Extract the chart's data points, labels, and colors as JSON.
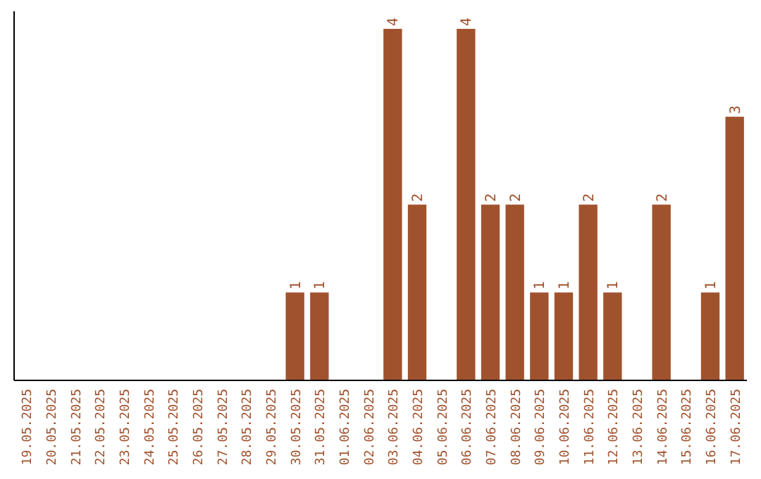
{
  "chart_data": {
    "type": "bar",
    "categories": [
      "19.05.2025",
      "20.05.2025",
      "21.05.2025",
      "22.05.2025",
      "23.05.2025",
      "24.05.2025",
      "25.05.2025",
      "26.05.2025",
      "27.05.2025",
      "28.05.2025",
      "29.05.2025",
      "30.05.2025",
      "31.05.2025",
      "01.06.2025",
      "02.06.2025",
      "03.06.2025",
      "04.06.2025",
      "05.06.2025",
      "06.06.2025",
      "07.06.2025",
      "08.06.2025",
      "09.06.2025",
      "10.06.2025",
      "11.06.2025",
      "12.06.2025",
      "13.06.2025",
      "14.06.2025",
      "15.06.2025",
      "16.06.2025",
      "17.06.2025"
    ],
    "values": [
      0,
      0,
      0,
      0,
      0,
      0,
      0,
      0,
      0,
      0,
      0,
      1,
      1,
      0,
      0,
      4,
      2,
      0,
      4,
      2,
      2,
      1,
      1,
      2,
      1,
      0,
      2,
      0,
      1,
      3
    ],
    "value_labels": [
      null,
      null,
      null,
      null,
      null,
      null,
      null,
      null,
      null,
      null,
      null,
      "1",
      "1",
      null,
      null,
      "4",
      "2",
      null,
      "4",
      "2",
      "2",
      "1",
      "1",
      "2",
      "1",
      null,
      "2",
      null,
      "1",
      "3"
    ],
    "color": "#a0522d",
    "ylim": [
      0,
      4.2
    ],
    "tick_labels": "x"
  }
}
